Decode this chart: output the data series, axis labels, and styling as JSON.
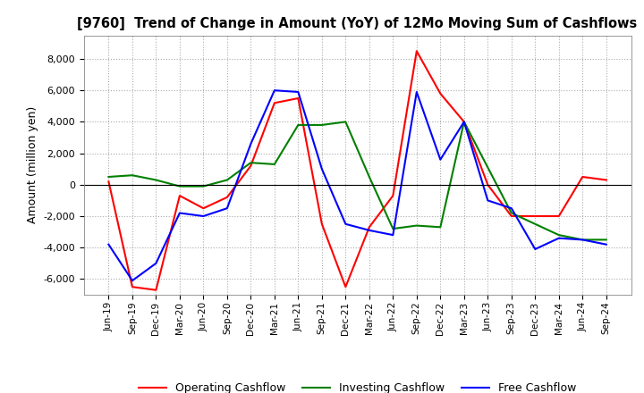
{
  "title": "[9760]  Trend of Change in Amount (YoY) of 12Mo Moving Sum of Cashflows",
  "ylabel": "Amount (million yen)",
  "background_color": "#ffffff",
  "grid_color": "#aaaaaa",
  "xlabels": [
    "Jun-19",
    "Sep-19",
    "Dec-19",
    "Mar-20",
    "Jun-20",
    "Sep-20",
    "Dec-20",
    "Mar-21",
    "Jun-21",
    "Sep-21",
    "Dec-21",
    "Mar-22",
    "Jun-22",
    "Sep-22",
    "Dec-22",
    "Mar-23",
    "Jun-23",
    "Sep-23",
    "Dec-23",
    "Mar-24",
    "Jun-24",
    "Sep-24"
  ],
  "operating": [
    200,
    -6500,
    -6700,
    -700,
    -1500,
    -800,
    1200,
    5200,
    5500,
    -2500,
    -6500,
    -2700,
    -700,
    8500,
    5800,
    4000,
    0,
    -2000,
    -2000,
    -2000,
    500,
    300
  ],
  "investing": [
    500,
    600,
    300,
    -100,
    -100,
    300,
    1400,
    1300,
    3800,
    3800,
    4000,
    500,
    -2800,
    -2600,
    -2700,
    4000,
    1100,
    -1800,
    -2500,
    -3200,
    -3500,
    -3500
  ],
  "free": [
    -3800,
    -6100,
    -5000,
    -1800,
    -2000,
    -1500,
    2600,
    6000,
    5900,
    1000,
    -2500,
    -2900,
    -3200,
    5900,
    1600,
    4000,
    -1000,
    -1500,
    -4100,
    -3400,
    -3500,
    -3800
  ],
  "ylim": [
    -7000,
    9500
  ],
  "yticks": [
    -6000,
    -4000,
    -2000,
    0,
    2000,
    4000,
    6000,
    8000
  ],
  "line_colors": {
    "operating": "#ff0000",
    "investing": "#008000",
    "free": "#0000ff"
  },
  "legend_labels": [
    "Operating Cashflow",
    "Investing Cashflow",
    "Free Cashflow"
  ]
}
